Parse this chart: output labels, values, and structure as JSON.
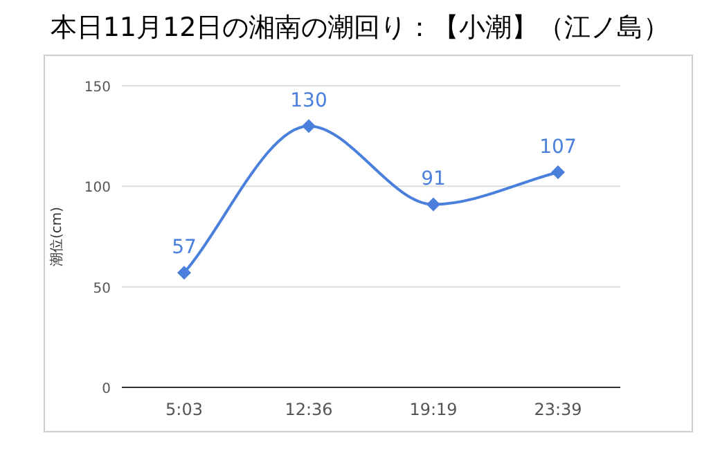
{
  "chart_data": {
    "type": "line",
    "title": "本日11月12日の湘南の潮回り：【小潮】（江ノ島）",
    "ylabel": "潮位(cm)",
    "categories": [
      "5:03",
      "12:36",
      "19:19",
      "23:39"
    ],
    "values": [
      57,
      130,
      91,
      107
    ],
    "color": "#4a7fdc",
    "ylim": [
      0,
      150
    ],
    "yticks": [
      0,
      50,
      100,
      150
    ],
    "grid": "y",
    "marker": "diamond",
    "data_labels": true
  }
}
